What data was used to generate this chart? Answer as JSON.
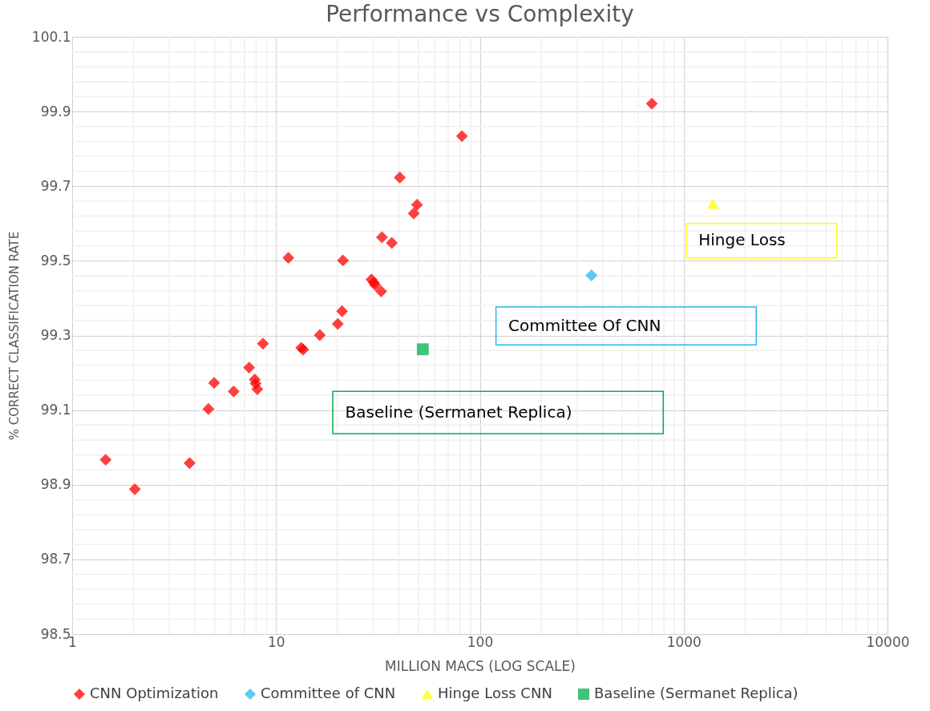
{
  "chart_data": {
    "type": "scatter",
    "title": "Performance vs Complexity",
    "xlabel": "MILLION MACS (LOG SCALE)",
    "ylabel": "% CORRECT CLASSIFICATION RATE",
    "log": "x",
    "grid": true,
    "legend": "bottom",
    "xlim": [
      1,
      10000
    ],
    "xticks": [
      1,
      10,
      100,
      1000,
      10000
    ],
    "ylim": [
      98.5,
      100.1
    ],
    "yticks": [
      98.5,
      98.7,
      98.9,
      99.1,
      99.3,
      99.5,
      99.7,
      99.9,
      100.1
    ],
    "series": [
      {
        "name": "CNN Optimization",
        "color": "#ff0000",
        "marker": "diamond",
        "x": [
          1.46,
          2.03,
          3.77,
          4.66,
          4.97,
          6.2,
          7.38,
          7.87,
          7.94,
          8.1,
          8.63,
          11.5,
          13.3,
          13.6,
          16.4,
          20.1,
          21.1,
          21.3,
          29.4,
          30.2,
          30.7,
          32.8,
          33.1,
          37.0,
          40.5,
          47.4,
          49.2,
          81.7,
          698
        ],
        "values": [
          98.967,
          98.888,
          98.958,
          99.103,
          99.173,
          99.15,
          99.214,
          99.182,
          99.171,
          99.156,
          99.278,
          99.508,
          99.267,
          99.262,
          99.301,
          99.331,
          99.365,
          99.501,
          99.45,
          99.442,
          99.435,
          99.418,
          99.563,
          99.548,
          99.723,
          99.627,
          99.65,
          99.834,
          99.921
        ]
      },
      {
        "name": "Committee of CNN",
        "color": "#2ab6f0",
        "marker": "diamond",
        "x": [
          353
        ],
        "values": [
          99.461
        ]
      },
      {
        "name": "Hinge Loss CNN",
        "color": "#ffff00",
        "marker": "triangle",
        "x": [
          1393
        ],
        "values": [
          99.653
        ]
      },
      {
        "name": "Baseline (Sermanet Replica)",
        "color": "#00b050",
        "marker": "square",
        "x": [
          52.5
        ],
        "values": [
          99.263
        ]
      }
    ],
    "annotations": [
      "Hinge Loss",
      "Committee Of CNN",
      "Baseline (Sermanet Replica)"
    ]
  }
}
